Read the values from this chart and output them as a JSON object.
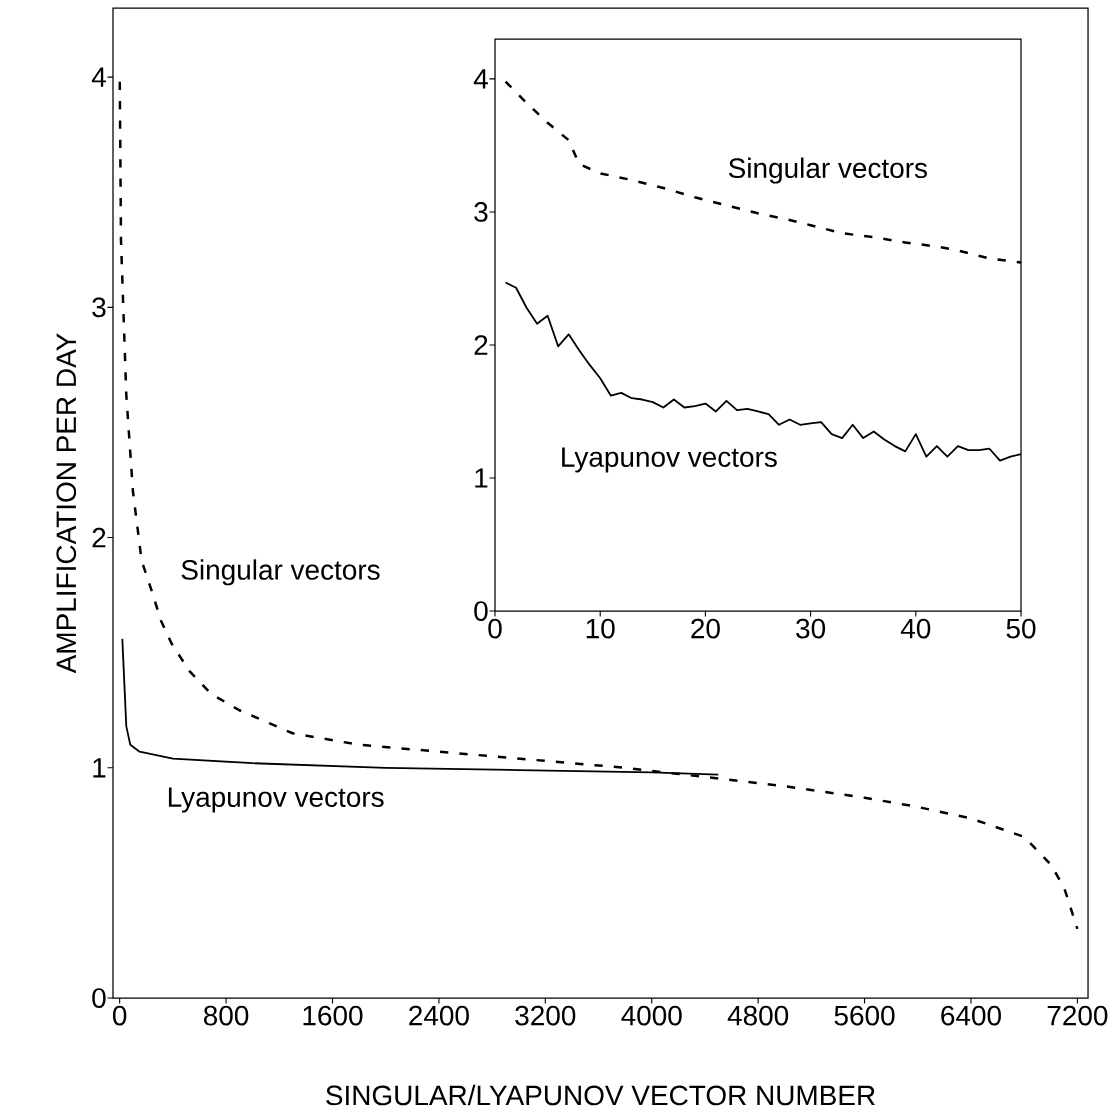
{
  "chart_data": [
    {
      "type": "line",
      "xlabel": "SINGULAR/LYAPUNOV VECTOR NUMBER",
      "ylabel": "AMPLIFICATION PER DAY",
      "xlim": [
        -50,
        7280
      ],
      "ylim": [
        0,
        4.3
      ],
      "xticks": [
        0,
        800,
        1600,
        2400,
        3200,
        4000,
        4800,
        5600,
        6400,
        7200
      ],
      "yticks": [
        0,
        1,
        2,
        3,
        4
      ],
      "grid": false,
      "legend": false,
      "marker": "none",
      "series": [
        {
          "name": "Singular vectors",
          "color": "#000000",
          "line_style": "dashed",
          "x": [
            1,
            10,
            50,
            100,
            165,
            240,
            310,
            390,
            525,
            690,
            900,
            1300,
            1800,
            2400,
            3200,
            3800,
            4400,
            5000,
            5600,
            6000,
            6400,
            6800,
            7000,
            7100,
            7200
          ],
          "values": [
            3.98,
            3.29,
            2.62,
            2.2,
            1.9,
            1.77,
            1.64,
            1.54,
            1.42,
            1.32,
            1.25,
            1.15,
            1.1,
            1.07,
            1.03,
            1.0,
            0.96,
            0.92,
            0.87,
            0.83,
            0.78,
            0.7,
            0.58,
            0.48,
            0.3
          ]
        },
        {
          "name": "Lyapunov vectors",
          "color": "#000000",
          "line_style": "solid",
          "x": [
            20,
            50,
            80,
            150,
            400,
            1000,
            2000,
            3000,
            4000,
            4500
          ],
          "values": [
            1.56,
            1.18,
            1.1,
            1.07,
            1.04,
            1.02,
            1.0,
            0.99,
            0.98,
            0.97
          ]
        }
      ]
    },
    {
      "type": "line",
      "xlim": [
        0,
        50
      ],
      "ylim": [
        0,
        4.3
      ],
      "xticks": [
        0,
        10,
        20,
        30,
        40,
        50
      ],
      "yticks": [
        0,
        1,
        2,
        3,
        4
      ],
      "grid": false,
      "legend": false,
      "marker": "none",
      "series": [
        {
          "name": "Singular vectors",
          "color": "#000000",
          "line_style": "dashed",
          "x": [
            1,
            3,
            5,
            7,
            8,
            10,
            13,
            16,
            19,
            22,
            25,
            28,
            30,
            33,
            36,
            39,
            42,
            44,
            47,
            50
          ],
          "values": [
            3.98,
            3.82,
            3.67,
            3.54,
            3.36,
            3.29,
            3.24,
            3.18,
            3.11,
            3.05,
            2.99,
            2.94,
            2.9,
            2.84,
            2.81,
            2.77,
            2.74,
            2.71,
            2.65,
            2.62
          ]
        },
        {
          "name": "Lyapunov vectors",
          "color": "#000000",
          "line_style": "solid",
          "x": [
            1,
            2,
            3,
            4,
            5,
            6,
            7,
            8,
            9,
            10,
            11,
            12,
            13,
            14,
            15,
            16,
            17,
            18,
            19,
            20,
            21,
            22,
            23,
            24,
            25,
            26,
            27,
            28,
            29,
            30,
            31,
            32,
            33,
            34,
            35,
            36,
            37,
            38,
            39,
            40,
            41,
            42,
            43,
            44,
            45,
            46,
            47,
            48,
            49,
            50
          ],
          "values": [
            2.47,
            2.43,
            2.28,
            2.16,
            2.22,
            1.99,
            2.08,
            1.96,
            1.85,
            1.75,
            1.62,
            1.64,
            1.6,
            1.59,
            1.57,
            1.53,
            1.59,
            1.53,
            1.54,
            1.56,
            1.5,
            1.58,
            1.51,
            1.52,
            1.5,
            1.48,
            1.4,
            1.44,
            1.4,
            1.41,
            1.42,
            1.33,
            1.3,
            1.4,
            1.3,
            1.35,
            1.29,
            1.24,
            1.2,
            1.33,
            1.16,
            1.24,
            1.16,
            1.24,
            1.21,
            1.21,
            1.22,
            1.13,
            1.16,
            1.18
          ]
        }
      ]
    }
  ]
}
